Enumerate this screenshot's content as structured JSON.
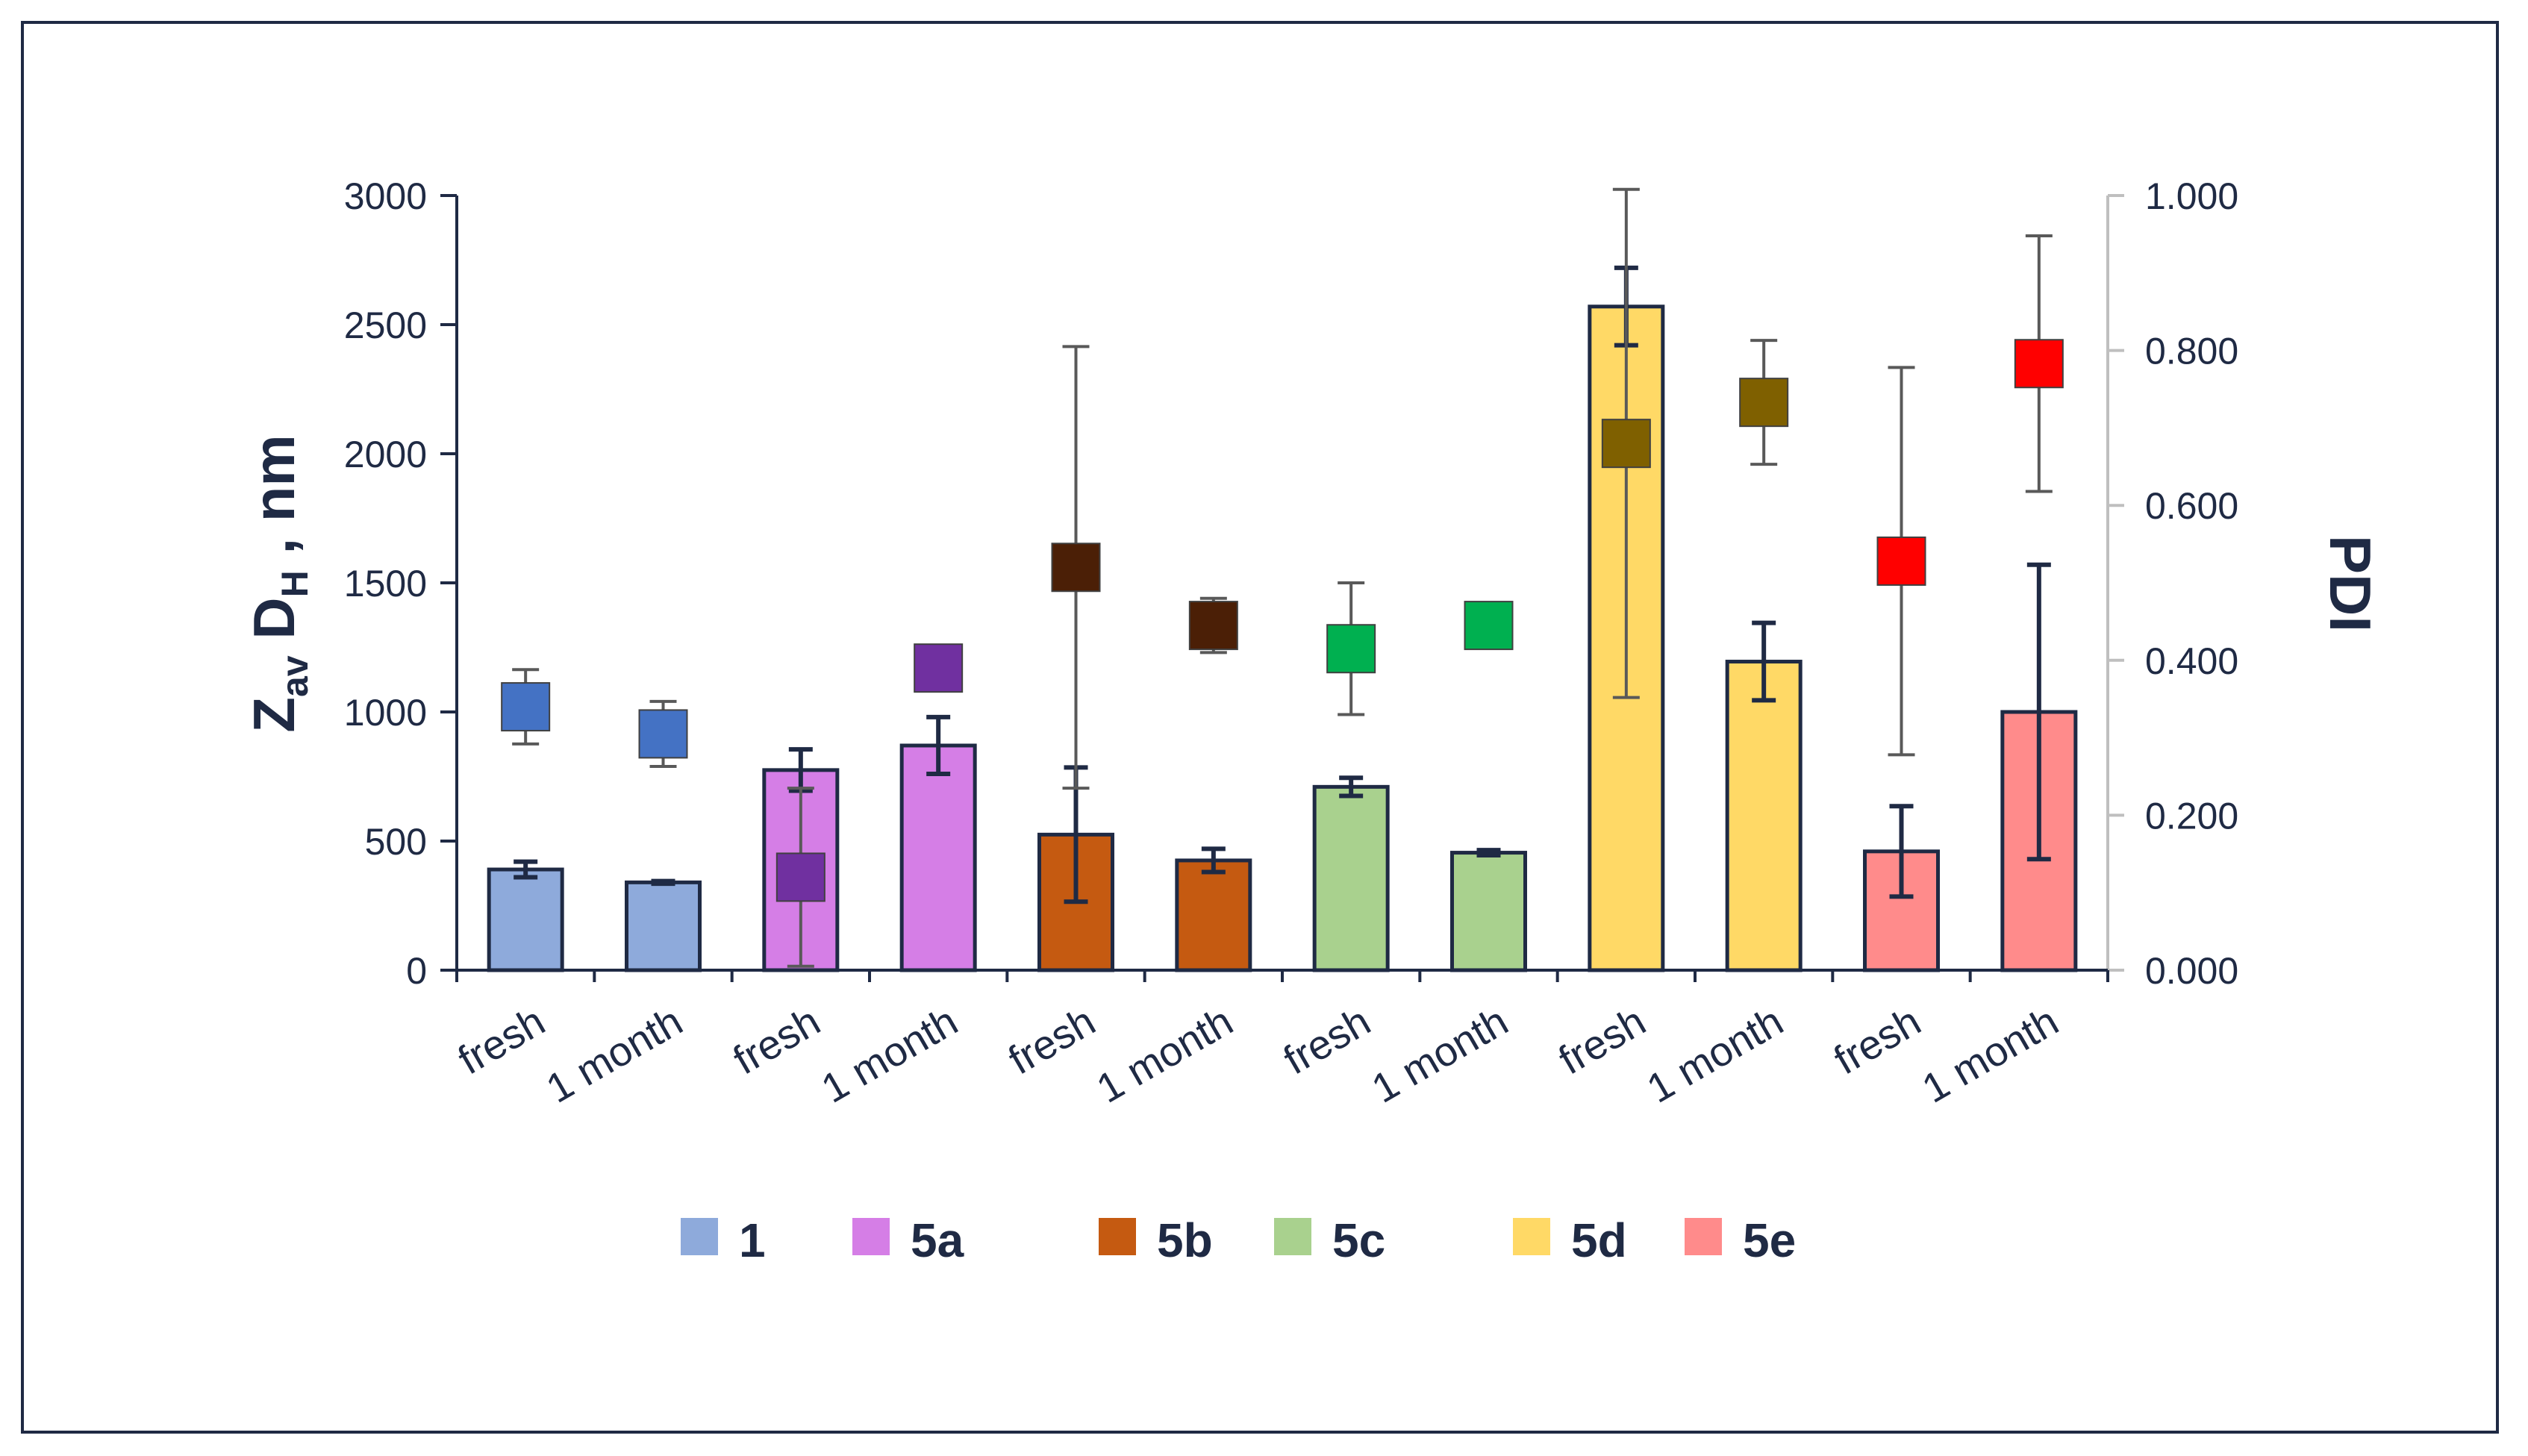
{
  "chart_data": {
    "type": "bar",
    "title": "",
    "categories": [
      "fresh",
      "1 month",
      "fresh",
      "1 month",
      "fresh",
      "1 month",
      "fresh",
      "1 month",
      "fresh",
      "1 month",
      "fresh",
      "1 month"
    ],
    "groups": [
      "1",
      "5a",
      "5b",
      "5c",
      "5d",
      "5e"
    ],
    "colors": {
      "1": "#8eaadb",
      "5a": "#d57ee6",
      "5b": "#c55a11",
      "5c": "#a9d18e",
      "5d": "#ffd966",
      "5e": "#ff8b8b"
    },
    "marker_colors": [
      "#4472c4",
      "#4472c4",
      "#7030a0",
      "#7030a0",
      "#4b1f06",
      "#4b1f06",
      "#00b050",
      "#00b050",
      "#7f6000",
      "#7f6000",
      "#ff0000",
      "#ff0000"
    ],
    "ylabel_main": "Z",
    "ylabel_sub": "av",
    "ylabel_main2": " D",
    "ylabel_sub2": "H",
    "ylabel_tail": " , nm",
    "y2label": "PDI",
    "ylim": [
      0,
      3000
    ],
    "y2lim": [
      0,
      1.0
    ],
    "yticks": [
      "0",
      "500",
      "1000",
      "1500",
      "2000",
      "2500",
      "3000"
    ],
    "y2ticks": [
      "0.000",
      "0.200",
      "0.400",
      "0.600",
      "0.800",
      "1.000"
    ],
    "series": [
      {
        "name": "Z-average D_H (nm)",
        "axis": "left",
        "kind": "bar",
        "values": [
          390,
          340,
          775,
          870,
          525,
          425,
          710,
          455,
          2570,
          1195,
          460,
          1000
        ],
        "errors": [
          30,
          5,
          80,
          110,
          260,
          45,
          35,
          10,
          150,
          150,
          175,
          570
        ]
      },
      {
        "name": "PDI",
        "axis": "right",
        "kind": "marker",
        "values": [
          0.34,
          0.305,
          0.12,
          0.39,
          0.52,
          0.445,
          0.415,
          0.445,
          0.68,
          0.733,
          0.528,
          0.783
        ],
        "errors": [
          0.048,
          0.042,
          0.115,
          0,
          0.285,
          0.035,
          0.085,
          0,
          0.328,
          0.08,
          0.25,
          0.165
        ]
      }
    ],
    "legend": [
      {
        "label": "1",
        "color": "#8eaadb"
      },
      {
        "label": "5a",
        "color": "#d57ee6"
      },
      {
        "label": "5b",
        "color": "#c55a11"
      },
      {
        "label": "5c",
        "color": "#a9d18e"
      },
      {
        "label": "5d",
        "color": "#ffd966"
      },
      {
        "label": "5e",
        "color": "#ff8b8b"
      }
    ],
    "legend_position": "bottom-center"
  }
}
